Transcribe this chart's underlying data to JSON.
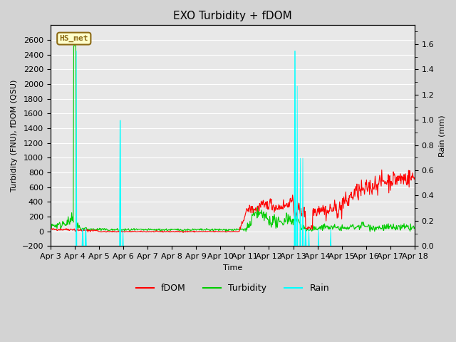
{
  "title": "EXO Turbidity + fDOM",
  "xlabel": "Time",
  "ylabel_left": "Turbidity (FNU), fDOM (QSU)",
  "ylabel_right": "Rain (mm)",
  "ylim_left": [
    -200,
    2800
  ],
  "ylim_right": [
    0.0,
    1.75
  ],
  "yticks_left": [
    -200,
    0,
    200,
    400,
    600,
    800,
    1000,
    1200,
    1400,
    1600,
    1800,
    2000,
    2200,
    2400,
    2600
  ],
  "yticks_right": [
    0.0,
    0.2,
    0.4,
    0.6,
    0.8,
    1.0,
    1.2,
    1.4,
    1.6
  ],
  "xtick_labels": [
    "Apr 3",
    "Apr 4",
    "Apr 5",
    "Apr 6",
    "Apr 7",
    "Apr 8",
    "Apr 9",
    "Apr 10",
    "Apr 11",
    "Apr 12",
    "Apr 13",
    "Apr 14",
    "Apr 15",
    "Apr 16",
    "Apr 17",
    "Apr 18"
  ],
  "background_color": "#d3d3d3",
  "plot_bg_color": "#e8e8e8",
  "annotation_text": "HS_met",
  "annotation_bg": "#ffffcc",
  "annotation_border": "#8B6914",
  "fdom_color": "#ff0000",
  "turbidity_color": "#00cc00",
  "rain_color": "#00ffff",
  "legend_fdom": "fDOM",
  "legend_turbidity": "Turbidity",
  "legend_rain": "Rain",
  "title_fontsize": 11,
  "axis_label_fontsize": 8,
  "tick_fontsize": 8
}
